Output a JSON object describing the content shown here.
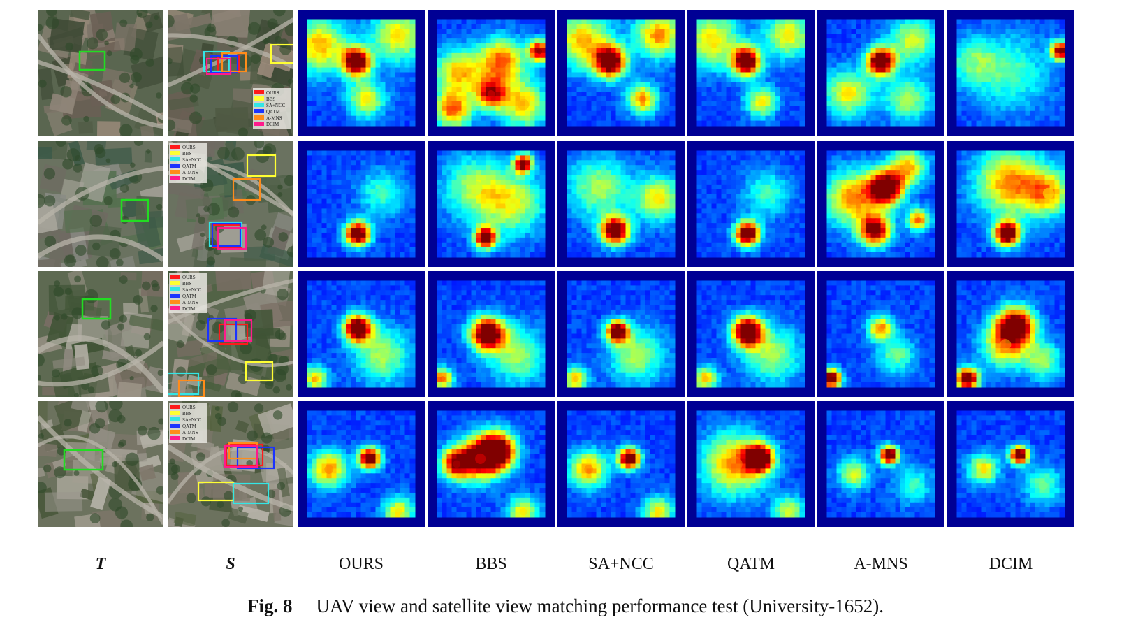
{
  "columns": [
    {
      "id": "T",
      "label": "T",
      "style": "italic-bold"
    },
    {
      "id": "S",
      "label": "S",
      "style": "italic-bold"
    },
    {
      "id": "OURS",
      "label": "OURS"
    },
    {
      "id": "BBS",
      "label": "BBS"
    },
    {
      "id": "SANCC",
      "label": "SA+NCC"
    },
    {
      "id": "QATM",
      "label": "QATM"
    },
    {
      "id": "AMNS",
      "label": "A-MNS"
    },
    {
      "id": "DCIM",
      "label": "DCIM"
    }
  ],
  "legend": {
    "entries": [
      {
        "label": "OURS",
        "color": "#ff1a1a"
      },
      {
        "label": "BBS",
        "color": "#ffff33"
      },
      {
        "label": "SA+NCC",
        "color": "#33e6e6"
      },
      {
        "label": "QATM",
        "color": "#1a33ff"
      },
      {
        "label": "A-MNS",
        "color": "#ff8c1a"
      },
      {
        "label": "DCIM",
        "color": "#ff1a8c"
      }
    ]
  },
  "caption": {
    "figure_number": "Fig. 8",
    "text": "UAV view and satellite view matching performance test (University-1652)."
  },
  "heatmap_peaks": [
    {
      "OURS": [
        [
          0.46,
          0.4,
          1.0,
          0.09
        ],
        [
          0.12,
          0.25,
          0.5,
          0.18
        ],
        [
          0.55,
          0.75,
          0.45,
          0.12
        ],
        [
          0.85,
          0.15,
          0.45,
          0.18
        ]
      ],
      "BBS": [
        [
          0.95,
          0.3,
          0.8,
          0.07
        ],
        [
          0.5,
          0.7,
          0.7,
          0.1
        ],
        [
          0.2,
          0.5,
          0.5,
          0.15
        ],
        [
          0.6,
          0.4,
          0.6,
          0.15
        ],
        [
          0.15,
          0.85,
          0.6,
          0.12
        ],
        [
          0.8,
          0.8,
          0.5,
          0.15
        ]
      ],
      "SANCC": [
        [
          0.4,
          0.4,
          1.0,
          0.1
        ],
        [
          0.7,
          0.75,
          0.55,
          0.1
        ],
        [
          0.15,
          0.2,
          0.5,
          0.18
        ],
        [
          0.85,
          0.15,
          0.55,
          0.15
        ]
      ],
      "QATM": [
        [
          0.46,
          0.4,
          1.0,
          0.09
        ],
        [
          0.6,
          0.78,
          0.45,
          0.1
        ],
        [
          0.15,
          0.2,
          0.45,
          0.18
        ],
        [
          0.85,
          0.15,
          0.45,
          0.15
        ]
      ],
      "AMNS": [
        [
          0.5,
          0.4,
          1.0,
          0.09
        ],
        [
          0.2,
          0.7,
          0.45,
          0.15
        ],
        [
          0.8,
          0.2,
          0.4,
          0.15
        ],
        [
          0.75,
          0.75,
          0.35,
          0.15
        ]
      ],
      "DCIM": [
        [
          0.96,
          0.3,
          0.85,
          0.06
        ],
        [
          0.5,
          0.5,
          0.25,
          0.25
        ],
        [
          0.15,
          0.4,
          0.25,
          0.15
        ]
      ]
    },
    {
      "OURS": [
        [
          0.47,
          0.78,
          1.0,
          0.08
        ],
        [
          0.7,
          0.4,
          0.25,
          0.15
        ]
      ],
      "BBS": [
        [
          0.8,
          0.12,
          0.9,
          0.06
        ],
        [
          0.45,
          0.82,
          0.95,
          0.07
        ],
        [
          0.7,
          0.5,
          0.4,
          0.2
        ],
        [
          0.35,
          0.35,
          0.35,
          0.2
        ]
      ],
      "SANCC": [
        [
          0.45,
          0.75,
          1.0,
          0.09
        ],
        [
          0.85,
          0.45,
          0.45,
          0.15
        ],
        [
          0.3,
          0.35,
          0.35,
          0.2
        ]
      ],
      "QATM": [
        [
          0.47,
          0.78,
          1.0,
          0.08
        ],
        [
          0.65,
          0.4,
          0.25,
          0.15
        ]
      ],
      "AMNS": [
        [
          0.55,
          0.35,
          1.0,
          0.11
        ],
        [
          0.45,
          0.75,
          0.85,
          0.1
        ],
        [
          0.85,
          0.65,
          0.6,
          0.07
        ],
        [
          0.25,
          0.45,
          0.55,
          0.18
        ],
        [
          0.75,
          0.15,
          0.5,
          0.12
        ]
      ],
      "DCIM": [
        [
          0.47,
          0.78,
          1.0,
          0.08
        ],
        [
          0.5,
          0.3,
          0.55,
          0.22
        ],
        [
          0.85,
          0.4,
          0.45,
          0.15
        ]
      ]
    },
    {
      "OURS": [
        [
          0.47,
          0.45,
          1.0,
          0.09
        ],
        [
          0.08,
          0.92,
          0.5,
          0.08
        ],
        [
          0.7,
          0.7,
          0.35,
          0.18
        ]
      ],
      "BBS": [
        [
          0.47,
          0.5,
          1.0,
          0.11
        ],
        [
          0.05,
          0.92,
          0.6,
          0.07
        ],
        [
          0.75,
          0.7,
          0.35,
          0.18
        ]
      ],
      "SANCC": [
        [
          0.47,
          0.48,
          1.0,
          0.07
        ],
        [
          0.08,
          0.92,
          0.5,
          0.08
        ],
        [
          0.65,
          0.7,
          0.35,
          0.18
        ]
      ],
      "QATM": [
        [
          0.47,
          0.48,
          1.0,
          0.1
        ],
        [
          0.08,
          0.92,
          0.5,
          0.08
        ],
        [
          0.7,
          0.7,
          0.35,
          0.18
        ]
      ],
      "AMNS": [
        [
          0.05,
          0.92,
          1.0,
          0.06
        ],
        [
          0.5,
          0.45,
          0.55,
          0.08
        ],
        [
          0.65,
          0.7,
          0.3,
          0.12
        ]
      ],
      "DCIM": [
        [
          0.1,
          0.92,
          1.0,
          0.07
        ],
        [
          0.55,
          0.42,
          0.9,
          0.12
        ],
        [
          0.45,
          0.6,
          0.5,
          0.15
        ],
        [
          0.8,
          0.75,
          0.35,
          0.12
        ]
      ]
    },
    {
      "OURS": [
        [
          0.58,
          0.45,
          1.0,
          0.07
        ],
        [
          0.2,
          0.55,
          0.55,
          0.12
        ],
        [
          0.85,
          0.95,
          0.45,
          0.1
        ]
      ],
      "BBS": [
        [
          0.55,
          0.38,
          1.0,
          0.12
        ],
        [
          0.18,
          0.5,
          0.75,
          0.1
        ],
        [
          0.4,
          0.45,
          0.7,
          0.14
        ],
        [
          0.8,
          0.95,
          0.45,
          0.1
        ]
      ],
      "SANCC": [
        [
          0.58,
          0.45,
          1.0,
          0.07
        ],
        [
          0.2,
          0.55,
          0.55,
          0.12
        ],
        [
          0.85,
          0.95,
          0.45,
          0.1
        ]
      ],
      "QATM": [
        [
          0.58,
          0.45,
          1.0,
          0.09
        ],
        [
          0.35,
          0.5,
          0.55,
          0.2
        ],
        [
          0.85,
          0.95,
          0.4,
          0.1
        ]
      ],
      "AMNS": [
        [
          0.58,
          0.42,
          1.0,
          0.06
        ],
        [
          0.25,
          0.6,
          0.4,
          0.1
        ],
        [
          0.8,
          0.7,
          0.25,
          0.12
        ]
      ],
      "DCIM": [
        [
          0.58,
          0.42,
          1.0,
          0.06
        ],
        [
          0.25,
          0.55,
          0.45,
          0.1
        ],
        [
          0.8,
          0.7,
          0.3,
          0.12
        ]
      ]
    }
  ]
}
